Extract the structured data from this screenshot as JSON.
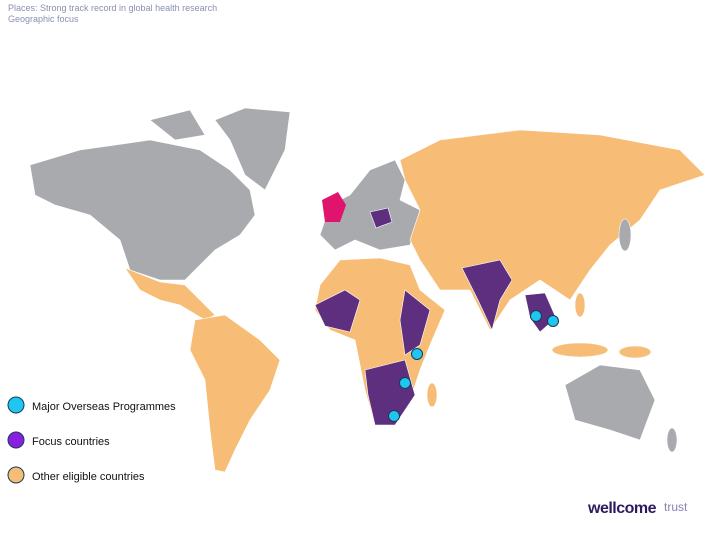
{
  "header": {
    "title": "Places: Strong track record in global health research",
    "subtitle": "Geographic focus"
  },
  "legend": [
    {
      "label": "Major Overseas Programmes"
    },
    {
      "label": "Focus countries"
    },
    {
      "label": "Other eligible countries"
    }
  ],
  "logo": {
    "brand": "wellcome",
    "suffix": "trust"
  }
}
